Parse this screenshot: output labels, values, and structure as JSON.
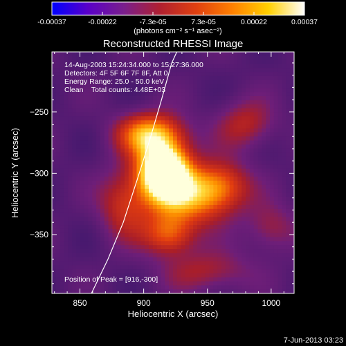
{
  "colorbar": {
    "tick_labels": [
      "-0.00037",
      "-0.00022",
      "-7.3e-05",
      "7.3e-05",
      "0.00022",
      "0.00037"
    ],
    "range": [
      -0.00037,
      0.00037
    ],
    "unit": "(photons cm⁻² s⁻¹ asec⁻²)",
    "colors": [
      "#0000ff",
      "#5a00c8",
      "#7a1f8c",
      "#b02030",
      "#e04010",
      "#ff8000",
      "#ffd000",
      "#ffffff"
    ]
  },
  "chart_data": {
    "type": "heatmap",
    "title": "Reconstructed RHESSI Image",
    "xlabel": "Heliocentric X (arcsec)",
    "ylabel": "Heliocentric Y (arcsec)",
    "xlim": [
      828,
      1018
    ],
    "ylim": [
      -398,
      -201
    ],
    "xticks": [
      850,
      900,
      950,
      1000
    ],
    "yticks": [
      -250,
      -300,
      -350
    ],
    "info_lines": [
      "14-Aug-2003 15:24:34.000 to 15:27:36.000",
      "Detectors: 4F 5F 6F 7F 8F, Att 0",
      "Energy Range: 25.0 - 50.0 keV",
      "Clean    Total counts: 4.48E+03"
    ],
    "peak_label": "Position of Peak = [916,-300]",
    "peak": [
      916,
      -300
    ],
    "limb_curve": [
      [
        859,
        -398
      ],
      [
        872,
        -370
      ],
      [
        884,
        -340
      ],
      [
        895,
        -305
      ],
      [
        905,
        -272
      ],
      [
        914,
        -240
      ],
      [
        922,
        -210
      ],
      [
        926,
        -201
      ]
    ],
    "sources": [
      {
        "x": 916,
        "y": -298,
        "amp": 1.0,
        "sx": 14,
        "sy": 16
      },
      {
        "x": 905,
        "y": -268,
        "amp": 0.55,
        "sx": 18,
        "sy": 12
      },
      {
        "x": 935,
        "y": -320,
        "amp": 0.45,
        "sx": 22,
        "sy": 16
      },
      {
        "x": 960,
        "y": -310,
        "amp": 0.35,
        "sx": 16,
        "sy": 14
      },
      {
        "x": 920,
        "y": -350,
        "amp": 0.4,
        "sx": 14,
        "sy": 12
      },
      {
        "x": 885,
        "y": -325,
        "amp": 0.3,
        "sx": 14,
        "sy": 20
      },
      {
        "x": 980,
        "y": -260,
        "amp": 0.25,
        "sx": 16,
        "sy": 14
      },
      {
        "x": 950,
        "y": -380,
        "amp": 0.22,
        "sx": 24,
        "sy": 12
      },
      {
        "x": 1000,
        "y": -345,
        "amp": 0.2,
        "sx": 14,
        "sy": 14
      }
    ],
    "background_level": 0.28
  },
  "footer": {
    "timestamp": "7-Jun-2013 03:23"
  }
}
